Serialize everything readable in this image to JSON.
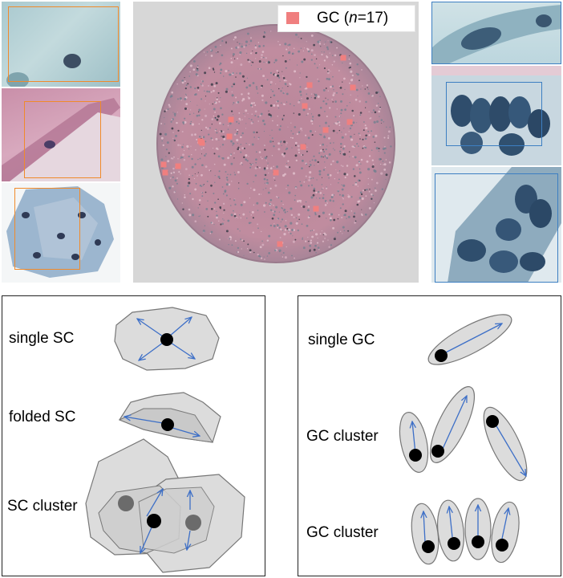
{
  "legend": {
    "prefix": "GC (",
    "n_symbol": "n",
    "suffix": "=17)",
    "color": "#f07f7f"
  },
  "left_diagram": {
    "labels": [
      "single SC",
      "folded SC",
      "SC cluster"
    ]
  },
  "right_diagram": {
    "labels": [
      "single GC",
      "GC cluster",
      "GC cluster"
    ]
  },
  "colors": {
    "cell_fill": "#dcdcdc",
    "cell_stroke": "#777777",
    "arrow": "#3d6fc7",
    "nucleus": "#000000",
    "nucleus_gray": "#6b6b6b",
    "frame_orange": "#f08a2b",
    "frame_blue": "#3d7fc2",
    "marker": "#f07f7f"
  }
}
